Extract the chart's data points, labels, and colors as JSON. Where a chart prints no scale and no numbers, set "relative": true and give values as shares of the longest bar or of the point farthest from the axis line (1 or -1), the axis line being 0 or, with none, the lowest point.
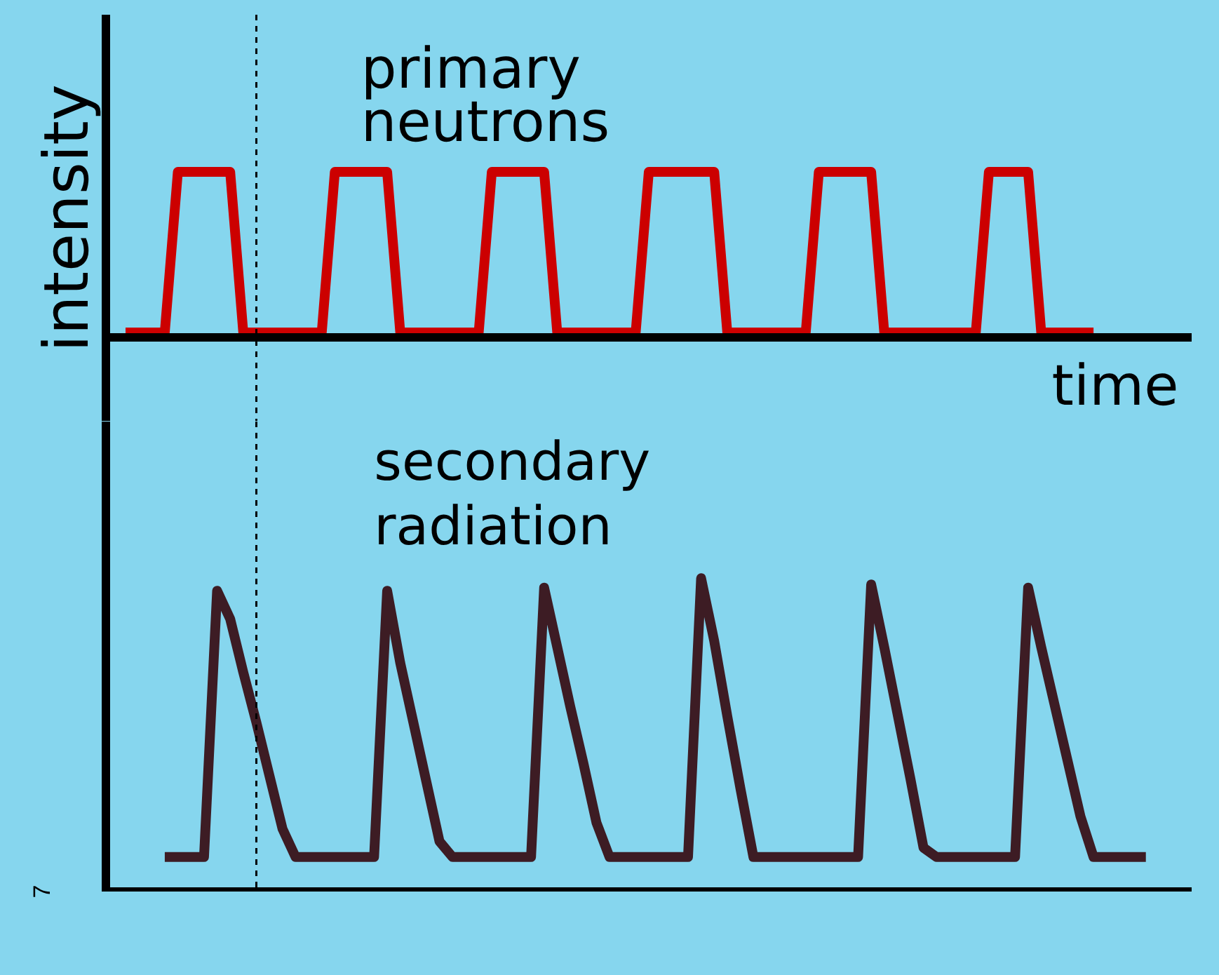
{
  "chart_data": [
    {
      "type": "line",
      "relative": true,
      "xlabel": "time",
      "ylabel": "intensity",
      "annotations": [
        "primary neutrons"
      ],
      "categories": [
        null,
        null,
        null,
        null,
        null,
        null,
        null,
        null,
        null,
        null,
        null,
        null,
        null,
        null,
        null,
        null,
        null,
        null,
        null,
        null,
        null,
        null,
        null,
        null,
        null,
        null,
        null,
        null,
        null,
        null,
        null,
        null,
        null,
        null,
        null,
        null,
        null,
        null,
        null,
        null,
        null,
        null,
        null,
        null,
        null,
        null,
        null,
        null,
        null,
        null,
        null,
        null,
        null,
        null,
        null,
        null,
        null,
        null,
        null,
        null,
        null,
        null,
        null,
        null,
        null,
        null,
        null,
        null,
        null,
        null,
        null,
        null,
        null,
        null,
        null,
        null,
        null,
        null,
        null,
        null,
        null,
        null
      ],
      "series": [
        {
          "color": "#cc0000",
          "values": [
            0.03,
            0.03,
            0.03,
            0.03,
            1,
            1,
            1,
            1,
            1,
            0.03,
            0.03,
            0.03,
            0.03,
            0.03,
            0.03,
            0.03,
            1,
            1,
            1,
            1,
            1,
            0.03,
            0.03,
            0.03,
            0.03,
            0.03,
            0.03,
            0.03,
            1,
            1,
            1,
            1,
            1,
            0.03,
            0.03,
            0.03,
            0.03,
            0.03,
            0.03,
            0.03,
            1,
            1,
            1,
            1,
            1,
            1,
            0.03,
            0.03,
            0.03,
            0.03,
            0.03,
            0.03,
            0.03,
            1,
            1,
            1,
            1,
            1,
            0.03,
            0.03,
            0.03,
            0.03,
            0.03,
            0.03,
            0.03,
            0.03,
            1,
            1,
            1,
            1,
            0.03,
            0.03,
            0.03,
            0.03,
            0.03,
            null,
            null,
            null,
            null,
            null,
            null,
            null
          ]
        }
      ]
    },
    {
      "type": "line",
      "relative": true,
      "annotations": [
        "secondary radiation",
        "7"
      ],
      "categories": [
        null,
        null,
        null,
        null,
        null,
        null,
        null,
        null,
        null,
        null,
        null,
        null,
        null,
        null,
        null,
        null,
        null,
        null,
        null,
        null,
        null,
        null,
        null,
        null,
        null,
        null,
        null,
        null,
        null,
        null,
        null,
        null,
        null,
        null,
        null,
        null,
        null,
        null,
        null,
        null,
        null,
        null,
        null,
        null,
        null,
        null,
        null,
        null,
        null,
        null,
        null,
        null,
        null,
        null,
        null,
        null,
        null,
        null,
        null,
        null,
        null,
        null,
        null,
        null,
        null,
        null,
        null,
        null,
        null,
        null,
        null,
        null,
        null,
        null,
        null,
        null,
        null,
        null,
        null,
        null,
        null,
        null
      ],
      "series": [
        {
          "color": "#3d1c24",
          "values": [
            null,
            null,
            null,
            0.11,
            0.11,
            0.11,
            0.11,
            0.96,
            0.87,
            0.7,
            0.54,
            0.37,
            0.2,
            0.11,
            0.11,
            0.11,
            0.11,
            0.11,
            0.11,
            0.11,
            0.96,
            0.73,
            0.54,
            0.35,
            0.16,
            0.11,
            0.11,
            0.11,
            0.11,
            0.11,
            0.11,
            0.11,
            0.97,
            0.78,
            0.59,
            0.41,
            0.22,
            0.11,
            0.11,
            0.11,
            0.11,
            0.11,
            0.11,
            0.11,
            1,
            0.8,
            0.56,
            0.33,
            0.11,
            0.11,
            0.11,
            0.11,
            0.11,
            0.11,
            0.11,
            0.11,
            0.11,
            0.98,
            0.78,
            0.57,
            0.36,
            0.14,
            0.11,
            0.11,
            0.11,
            0.11,
            0.11,
            0.11,
            0.11,
            0.97,
            0.78,
            0.6,
            0.42,
            0.24,
            0.11,
            0.11,
            0.11,
            0.11,
            0.11,
            null,
            null,
            null
          ]
        }
      ]
    }
  ]
}
